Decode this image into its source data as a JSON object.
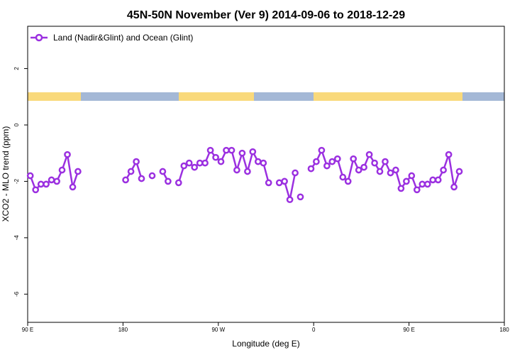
{
  "chart_data": {
    "type": "line",
    "title": "45N-50N November (Ver 9)   2014-09-06 to 2018-12-29",
    "xlabel": "Longitude (deg E)",
    "ylabel": "XCO2 - MLO trend (ppm)",
    "xlim": [
      90,
      450
    ],
    "ylim": [
      -7,
      3.5
    ],
    "x_ticks": [
      {
        "value": 90,
        "label": "90 E"
      },
      {
        "value": 180,
        "label": "180"
      },
      {
        "value": 270,
        "label": "90 W"
      },
      {
        "value": 360,
        "label": "0"
      },
      {
        "value": 450,
        "label": "90 E"
      },
      {
        "value": 540,
        "label": "180"
      }
    ],
    "y_ticks": [
      {
        "value": 2,
        "label": "2"
      },
      {
        "value": 0,
        "label": "0"
      },
      {
        "value": -2,
        "label": "-2"
      },
      {
        "value": -4,
        "label": "-4"
      },
      {
        "value": -6,
        "label": "-6"
      }
    ],
    "legend": {
      "position": "top-left"
    },
    "colors": {
      "series": "#9b30e0",
      "land": "#f9d97b",
      "ocean": "#a4b8d6"
    },
    "series": [
      {
        "name": "Land (Nadir&Glint) and Ocean (Glint)",
        "segments": [
          [
            [
              92.5,
              -1.8
            ],
            [
              97.5,
              -2.3
            ],
            [
              102.5,
              -2.1
            ],
            [
              107.5,
              -2.1
            ],
            [
              112.5,
              -1.95
            ],
            [
              117.5,
              -2.0
            ],
            [
              122.5,
              -1.6
            ],
            [
              127.5,
              -1.05
            ],
            [
              132.5,
              -2.2
            ],
            [
              137.5,
              -1.65
            ]
          ],
          [
            [
              182.5,
              -1.95
            ],
            [
              187.5,
              -1.65
            ],
            [
              192.5,
              -1.3
            ],
            [
              197.5,
              -1.9
            ]
          ],
          [
            [
              207.5,
              -1.8
            ]
          ],
          [
            [
              217.5,
              -1.65
            ],
            [
              222.5,
              -2.0
            ]
          ],
          [
            [
              232.5,
              -2.05
            ],
            [
              237.5,
              -1.45
            ],
            [
              242.5,
              -1.35
            ],
            [
              247.5,
              -1.5
            ],
            [
              252.5,
              -1.35
            ],
            [
              257.5,
              -1.35
            ],
            [
              262.5,
              -0.9
            ],
            [
              267.5,
              -1.15
            ],
            [
              272.5,
              -1.3
            ],
            [
              277.5,
              -0.9
            ],
            [
              282.5,
              -0.9
            ],
            [
              287.5,
              -1.6
            ],
            [
              292.5,
              -1.0
            ],
            [
              297.5,
              -1.65
            ],
            [
              302.5,
              -0.95
            ],
            [
              307.5,
              -1.3
            ],
            [
              312.5,
              -1.35
            ],
            [
              317.5,
              -2.05
            ]
          ],
          [
            [
              327.5,
              -2.05
            ],
            [
              332.5,
              -2.0
            ],
            [
              337.5,
              -2.65
            ],
            [
              342.5,
              -1.7
            ]
          ],
          [
            [
              347.5,
              -2.55
            ]
          ],
          [
            [
              357.5,
              -1.55
            ],
            [
              362.5,
              -1.3
            ],
            [
              367.5,
              -0.9
            ],
            [
              372.5,
              -1.45
            ],
            [
              377.5,
              -1.3
            ],
            [
              382.5,
              -1.2
            ],
            [
              387.5,
              -1.85
            ],
            [
              392.5,
              -2.0
            ],
            [
              397.5,
              -1.2
            ],
            [
              402.5,
              -1.6
            ],
            [
              407.5,
              -1.5
            ],
            [
              412.5,
              -1.05
            ],
            [
              417.5,
              -1.35
            ],
            [
              422.5,
              -1.65
            ],
            [
              427.5,
              -1.3
            ],
            [
              432.5,
              -1.7
            ],
            [
              437.5,
              -1.6
            ],
            [
              442.5,
              -2.25
            ],
            [
              447.5,
              -2.0
            ],
            [
              452.5,
              -1.8
            ],
            [
              457.5,
              -2.3
            ],
            [
              462.5,
              -2.1
            ],
            [
              467.5,
              -2.1
            ],
            [
              472.5,
              -1.95
            ],
            [
              477.5,
              -1.95
            ],
            [
              482.5,
              -1.6
            ],
            [
              487.5,
              -1.05
            ],
            [
              492.5,
              -2.2
            ],
            [
              497.5,
              -1.65
            ]
          ]
        ]
      }
    ]
  }
}
